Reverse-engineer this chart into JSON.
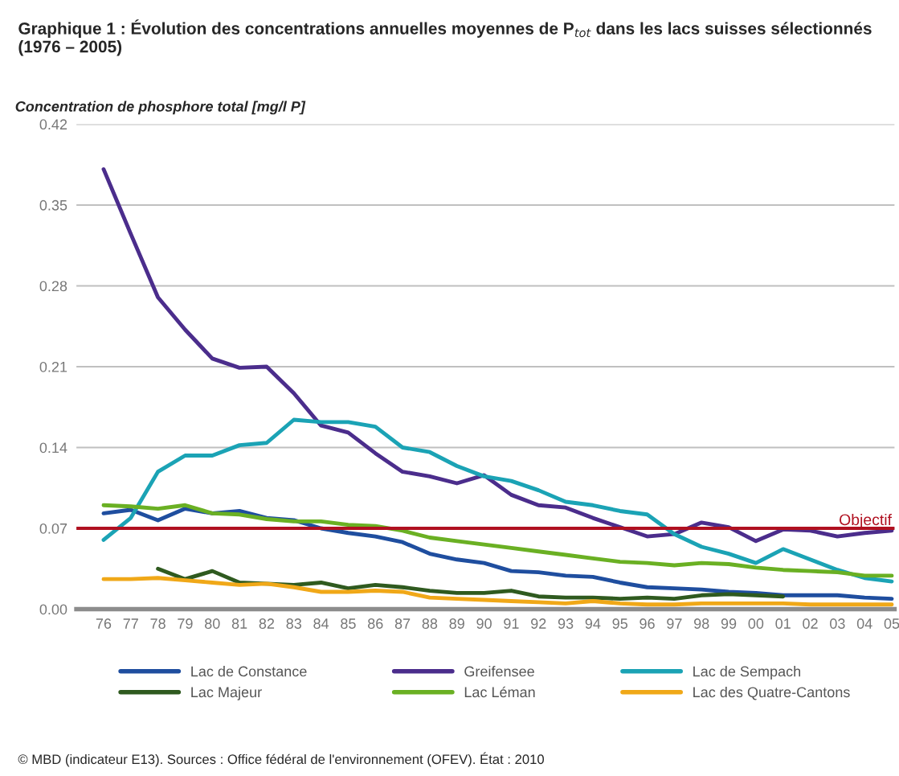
{
  "chart_data": {
    "type": "line",
    "title": "Graphique 1 : Évolution des concentrations annuelles moyennes de P$_{tot}$ dans les lacs suisses sélectionnés (1976 – 2005)",
    "ylabel": "Concentration de phosphore total [mg/l P]",
    "categories": [
      "76",
      "77",
      "78",
      "79",
      "80",
      "81",
      "82",
      "83",
      "84",
      "85",
      "86",
      "87",
      "88",
      "89",
      "90",
      "91",
      "92",
      "93",
      "94",
      "95",
      "96",
      "97",
      "98",
      "99",
      "00",
      "01",
      "02",
      "03",
      "04",
      "05"
    ],
    "series": [
      {
        "name": "Lac de Constance",
        "color": "#1f4e9f",
        "values": [
          0.083,
          0.086,
          0.077,
          0.087,
          0.083,
          0.085,
          0.079,
          0.077,
          0.07,
          0.066,
          0.063,
          0.058,
          0.048,
          0.043,
          0.04,
          0.033,
          0.032,
          0.029,
          0.028,
          0.023,
          0.019,
          0.018,
          0.017,
          0.015,
          0.014,
          0.012,
          0.012,
          0.012,
          0.01,
          0.009
        ]
      },
      {
        "name": "Greifensee",
        "color": "#4b2d8c",
        "values": [
          0.381,
          0.325,
          0.27,
          0.242,
          0.217,
          0.209,
          0.21,
          0.187,
          0.159,
          0.153,
          0.135,
          0.119,
          0.115,
          0.109,
          0.116,
          0.099,
          0.09,
          0.088,
          0.079,
          0.071,
          0.063,
          0.065,
          0.075,
          0.071,
          0.059,
          0.069,
          0.068,
          0.063,
          0.066,
          0.068
        ]
      },
      {
        "name": "Lac de Sempach",
        "color": "#1ba3b5",
        "values": [
          0.06,
          0.079,
          0.119,
          0.133,
          0.133,
          0.142,
          0.144,
          0.164,
          0.162,
          0.162,
          0.158,
          0.14,
          0.136,
          0.124,
          0.115,
          0.111,
          0.103,
          0.093,
          0.09,
          0.085,
          0.082,
          0.065,
          0.054,
          0.048,
          0.04,
          0.052,
          0.043,
          0.034,
          0.027,
          0.024
        ]
      },
      {
        "name": "Lac Majeur",
        "color": "#2f5a1f",
        "values": [
          null,
          null,
          0.035,
          0.026,
          0.033,
          0.023,
          0.022,
          0.021,
          0.023,
          0.018,
          0.021,
          0.019,
          0.016,
          0.014,
          0.014,
          0.016,
          0.011,
          0.01,
          0.01,
          0.009,
          0.01,
          0.009,
          0.012,
          0.013,
          0.012,
          0.011,
          null,
          null,
          null,
          null
        ]
      },
      {
        "name": "Lac Léman",
        "color": "#6ab023",
        "values": [
          0.09,
          0.089,
          0.087,
          0.09,
          0.083,
          0.082,
          0.078,
          0.076,
          0.076,
          0.073,
          0.072,
          0.068,
          0.062,
          0.059,
          0.056,
          0.053,
          0.05,
          0.047,
          0.044,
          0.041,
          0.04,
          0.038,
          0.04,
          0.039,
          0.036,
          0.034,
          0.033,
          0.032,
          0.029,
          0.029
        ]
      },
      {
        "name": "Lac des Quatre-Cantons",
        "color": "#f0a818",
        "values": [
          0.026,
          0.026,
          0.027,
          0.025,
          0.023,
          0.021,
          0.022,
          0.019,
          0.015,
          0.015,
          0.016,
          0.015,
          0.01,
          0.009,
          0.008,
          0.007,
          0.006,
          0.005,
          0.007,
          0.005,
          0.004,
          0.004,
          0.005,
          0.005,
          0.005,
          0.005,
          0.004,
          0.004,
          0.004,
          0.004
        ]
      }
    ],
    "ylim": [
      0,
      0.42
    ],
    "yticks": [
      {
        "value": 0,
        "label": "0.00"
      },
      0.07,
      0.14,
      0.21,
      0.28,
      0.35,
      0.42
    ],
    "ref_lines": [
      {
        "axis": "y",
        "value": 0.07,
        "label": "Objectif",
        "color": "#b01020"
      }
    ],
    "grid": "y",
    "legend": "bottom",
    "annotations": [
      "© MBD (indicateur E13). Sources : Office fédéral de l'environnement (OFEV). État : 2010"
    ]
  }
}
